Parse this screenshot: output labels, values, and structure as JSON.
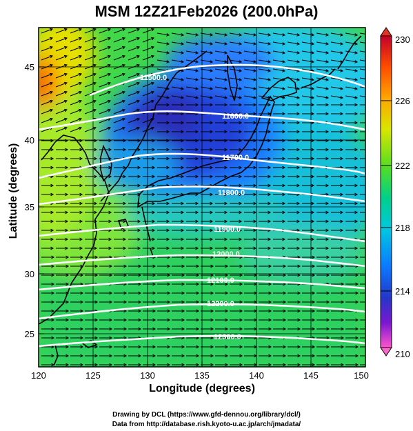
{
  "title": "MSM 12Z21Feb2026 (200.0hPa)",
  "axes": {
    "xlabel": "Longitude (degrees)",
    "ylabel": "Latitude  (degrees)",
    "xticks": [
      "120",
      "125",
      "130",
      "135",
      "140",
      "145",
      "150"
    ],
    "yticks": [
      "25",
      "30",
      "35",
      "40",
      "45"
    ]
  },
  "colorbar": {
    "labels": [
      "230",
      "226",
      "222",
      "218",
      "214",
      "210"
    ],
    "colors": [
      "#c4002a",
      "#ff4d00",
      "#ffa600",
      "#d8e600",
      "#55dd22",
      "#00d08a",
      "#00c8e0",
      "#0b79ff",
      "#2437c8",
      "#7a17d1",
      "#d100c8",
      "#ff55cc"
    ]
  },
  "contours": [
    {
      "label": "11500.0"
    },
    {
      "label": "11600.0"
    },
    {
      "label": "11700.0"
    },
    {
      "label": "11800.0"
    },
    {
      "label": "11900.0"
    },
    {
      "label": "12000.0"
    },
    {
      "label": "12100.0"
    },
    {
      "label": "12200.0"
    },
    {
      "label": "12300.0"
    }
  ],
  "credits": {
    "line1": "Drawing by DCL (https://www.gfd-dennou.org/library/dcl/)",
    "line2": "Data from http://database.rish.kyoto-u.ac.jp/arch/jmadata/"
  }
}
